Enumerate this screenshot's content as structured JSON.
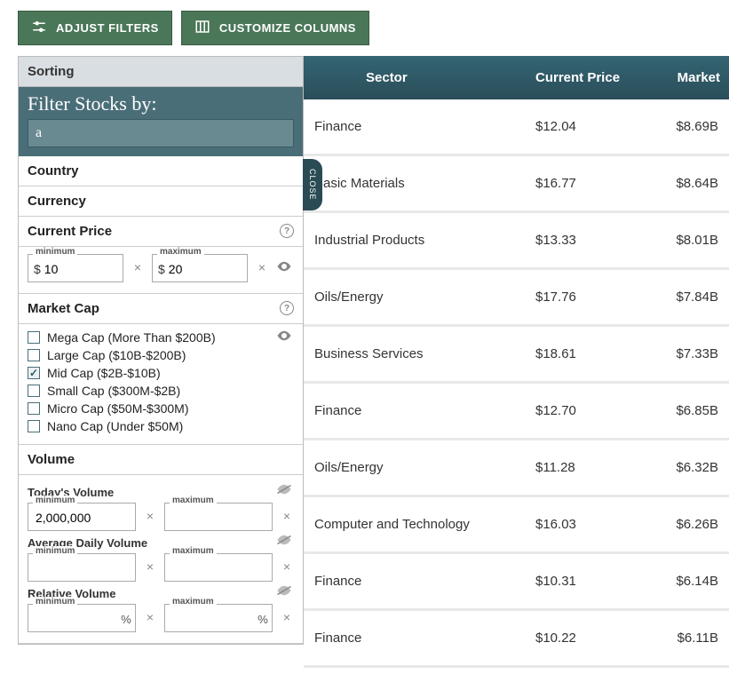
{
  "toolbar": {
    "adjust_filters": "ADJUST FILTERS",
    "customize_columns": "CUSTOMIZE COLUMNS"
  },
  "panel": {
    "sorting_label": "Sorting",
    "filter_title": "Filter Stocks by:",
    "search_value": "a",
    "close_label": "CLOSE",
    "sections": {
      "country": "Country",
      "currency": "Currency",
      "current_price": "Current Price",
      "market_cap": "Market Cap",
      "volume": "Volume"
    },
    "legends": {
      "minimum": "minimum",
      "maximum": "maximum"
    },
    "current_price": {
      "min": "10",
      "max": "20",
      "prefix": "$"
    },
    "market_cap_options": [
      {
        "label": "Mega Cap (More Than $200B)",
        "checked": false
      },
      {
        "label": "Large Cap ($10B-$200B)",
        "checked": false
      },
      {
        "label": "Mid Cap ($2B-$10B)",
        "checked": true
      },
      {
        "label": "Small Cap ($300M-$2B)",
        "checked": false
      },
      {
        "label": "Micro Cap ($50M-$300M)",
        "checked": false
      },
      {
        "label": "Nano Cap (Under $50M)",
        "checked": false
      }
    ],
    "volume": {
      "todays_label": "Today's Volume",
      "todays_min": "2,000,000",
      "todays_max": "",
      "avg_label": "Average Daily Volume",
      "avg_min": "",
      "avg_max": "",
      "rel_label": "Relative Volume",
      "rel_min": "",
      "rel_max": "",
      "pct_suffix": "%"
    }
  },
  "table": {
    "headers": {
      "sector": "Sector",
      "price": "Current Price",
      "market": "Market"
    },
    "rows": [
      {
        "sector": "Finance",
        "price": "$12.04",
        "market": "$8.69B"
      },
      {
        "sector": "Basic Materials",
        "price": "$16.77",
        "market": "$8.64B"
      },
      {
        "sector": "Industrial Products",
        "price": "$13.33",
        "market": "$8.01B"
      },
      {
        "sector": "Oils/Energy",
        "price": "$17.76",
        "market": "$7.84B"
      },
      {
        "sector": "Business Services",
        "price": "$18.61",
        "market": "$7.33B"
      },
      {
        "sector": "Finance",
        "price": "$12.70",
        "market": "$6.85B"
      },
      {
        "sector": "Oils/Energy",
        "price": "$11.28",
        "market": "$6.32B"
      },
      {
        "sector": "Computer and Technology",
        "price": "$16.03",
        "market": "$6.26B"
      },
      {
        "sector": "Finance",
        "price": "$10.31",
        "market": "$6.14B"
      },
      {
        "sector": "Finance",
        "price": "$10.22",
        "market": "$6.11B"
      }
    ]
  },
  "colors": {
    "button_bg": "#4a7758",
    "panel_teal": "#4a6e78",
    "table_header": "#2d5866"
  }
}
